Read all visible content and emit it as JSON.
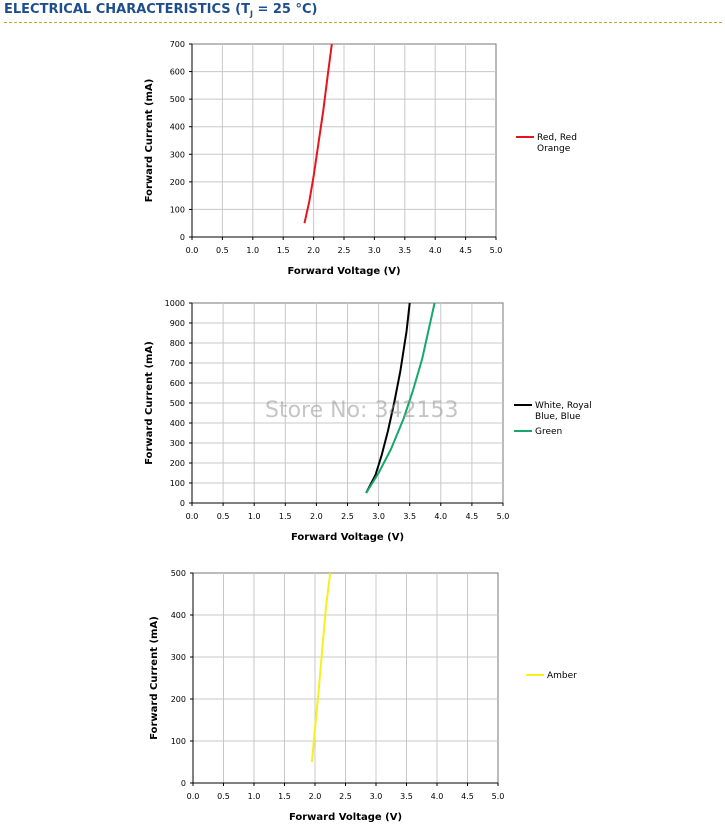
{
  "header": {
    "title_pre": "ELECTRICAL CHARACTERISTICS (T",
    "title_sub": "J",
    "title_post": " = 25 °C)"
  },
  "watermark": "Store No: 342153",
  "chart_data": [
    {
      "type": "line",
      "xlabel": "Forward Voltage (V)",
      "ylabel": "Forward Current (mA)",
      "xlim": [
        0,
        5
      ],
      "ylim": [
        0,
        700
      ],
      "xticks": [
        0,
        0.5,
        1,
        1.5,
        2,
        2.5,
        3,
        3.5,
        4,
        4.5,
        5
      ],
      "xtick_labels": [
        "0.0",
        "0.5",
        "1.0",
        "1.5",
        "2.0",
        "2.5",
        "3.0",
        "3.5",
        "4.0",
        "4.5",
        "5.0"
      ],
      "yticks": [
        0,
        100,
        200,
        300,
        400,
        500,
        600,
        700
      ],
      "grid": true,
      "legend_position": "right",
      "series": [
        {
          "name": "Red, Red Orange",
          "color": "#e8141c",
          "x": [
            1.85,
            1.93,
            2.0,
            2.08,
            2.16,
            2.24,
            2.3
          ],
          "y": [
            50,
            130,
            220,
            340,
            460,
            600,
            700
          ]
        }
      ]
    },
    {
      "type": "line",
      "xlabel": "Forward Voltage (V)",
      "ylabel": "Forward Current (mA)",
      "xlim": [
        0,
        5
      ],
      "ylim": [
        0,
        1000
      ],
      "xticks": [
        0,
        0.5,
        1,
        1.5,
        2,
        2.5,
        3,
        3.5,
        4,
        4.5,
        5
      ],
      "xtick_labels": [
        "0.0",
        "0.5",
        "1.0",
        "1.5",
        "2.0",
        "2.5",
        "3.0",
        "3.5",
        "4.0",
        "4.5",
        "5.0"
      ],
      "yticks": [
        0,
        100,
        200,
        300,
        400,
        500,
        600,
        700,
        800,
        900,
        1000
      ],
      "grid": true,
      "legend_position": "right",
      "series": [
        {
          "name": "White, Royal Blue, Blue",
          "color": "#000000",
          "x": [
            2.8,
            2.95,
            3.05,
            3.15,
            3.25,
            3.35,
            3.45,
            3.5
          ],
          "y": [
            50,
            140,
            240,
            360,
            500,
            660,
            860,
            1000
          ]
        },
        {
          "name": "Green",
          "color": "#17a86b",
          "x": [
            2.8,
            3.0,
            3.2,
            3.4,
            3.55,
            3.7,
            3.8,
            3.9
          ],
          "y": [
            50,
            150,
            270,
            420,
            560,
            720,
            860,
            1000
          ]
        }
      ]
    },
    {
      "type": "line",
      "xlabel": "Forward Voltage (V)",
      "ylabel": "Forward Current (mA)",
      "xlim": [
        0,
        5
      ],
      "ylim": [
        0,
        500
      ],
      "xticks": [
        0,
        0.5,
        1,
        1.5,
        2,
        2.5,
        3,
        3.5,
        4,
        4.5,
        5
      ],
      "xtick_labels": [
        "0.0",
        "0.5",
        "1.0",
        "1.5",
        "2.0",
        "2.5",
        "3.0",
        "3.5",
        "4.0",
        "4.5",
        "5.0"
      ],
      "yticks": [
        0,
        100,
        200,
        300,
        400,
        500
      ],
      "grid": true,
      "legend_position": "right",
      "series": [
        {
          "name": "Amber",
          "color": "#f5f01e",
          "x": [
            1.95,
            2.0,
            2.06,
            2.12,
            2.18,
            2.25
          ],
          "y": [
            50,
            130,
            220,
            320,
            420,
            500
          ]
        }
      ]
    }
  ]
}
